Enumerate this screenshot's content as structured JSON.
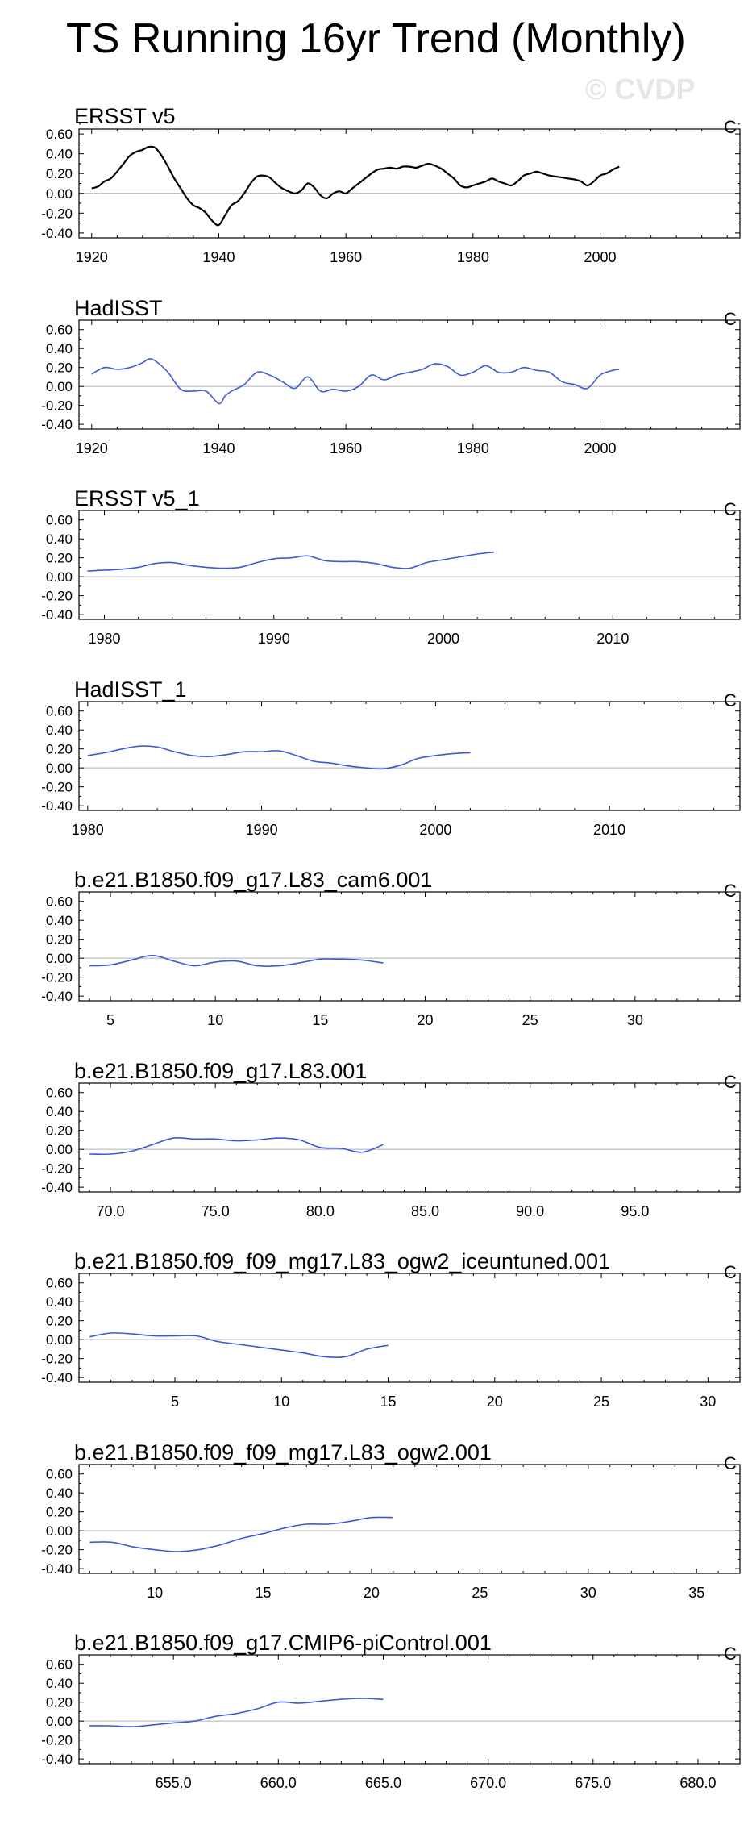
{
  "page_title": "TS Running 16yr Trend (Monthly)",
  "watermark": "© CVDP",
  "chart_data": [
    {
      "type": "line",
      "title": "ERSST v5",
      "units": "C",
      "line_color": "#000000",
      "xlim": [
        1918,
        2022
      ],
      "ylim": [
        -0.45,
        0.65
      ],
      "xticks": [
        1920,
        1940,
        1960,
        1980,
        2000
      ],
      "xtick_labels": [
        "1920",
        "1940",
        "1960",
        "1980",
        "2000"
      ],
      "yticks": [
        -0.4,
        -0.2,
        0.0,
        0.2,
        0.4,
        0.6
      ],
      "ytick_labels": [
        "-0.40",
        "-0.20",
        "0.00",
        "0.20",
        "0.40",
        "0.60"
      ],
      "x": [
        1920,
        1921,
        1922,
        1923,
        1924,
        1925,
        1926,
        1927,
        1928,
        1929,
        1930,
        1931,
        1932,
        1933,
        1934,
        1935,
        1936,
        1937,
        1938,
        1939,
        1940,
        1941,
        1942,
        1943,
        1944,
        1945,
        1946,
        1947,
        1948,
        1949,
        1950,
        1951,
        1952,
        1953,
        1954,
        1955,
        1956,
        1957,
        1958,
        1959,
        1960,
        1961,
        1962,
        1963,
        1964,
        1965,
        1966,
        1967,
        1968,
        1969,
        1970,
        1971,
        1972,
        1973,
        1974,
        1975,
        1976,
        1977,
        1978,
        1979,
        1980,
        1981,
        1982,
        1983,
        1984,
        1985,
        1986,
        1987,
        1988,
        1989,
        1990,
        1991,
        1992,
        1993,
        1994,
        1995,
        1996,
        1997,
        1998,
        1999,
        2000,
        2001,
        2002,
        2003
      ],
      "values": [
        0.05,
        0.07,
        0.12,
        0.15,
        0.22,
        0.3,
        0.38,
        0.42,
        0.44,
        0.47,
        0.46,
        0.38,
        0.27,
        0.15,
        0.05,
        -0.05,
        -0.12,
        -0.15,
        -0.2,
        -0.28,
        -0.32,
        -0.22,
        -0.12,
        -0.08,
        0.0,
        0.1,
        0.17,
        0.18,
        0.16,
        0.1,
        0.05,
        0.02,
        0.0,
        0.03,
        0.1,
        0.06,
        -0.02,
        -0.05,
        0.0,
        0.02,
        0.0,
        0.05,
        0.1,
        0.15,
        0.2,
        0.24,
        0.25,
        0.26,
        0.25,
        0.27,
        0.27,
        0.26,
        0.28,
        0.3,
        0.28,
        0.25,
        0.2,
        0.15,
        0.08,
        0.06,
        0.08,
        0.1,
        0.12,
        0.15,
        0.12,
        0.1,
        0.08,
        0.12,
        0.18,
        0.2,
        0.22,
        0.2,
        0.18,
        0.17,
        0.16,
        0.15,
        0.14,
        0.12,
        0.08,
        0.12,
        0.18,
        0.2,
        0.24,
        0.27
      ]
    },
    {
      "type": "line",
      "title": "HadISST",
      "units": "C",
      "line_color": "#3b5bd6",
      "xlim": [
        1918,
        2022
      ],
      "ylim": [
        -0.45,
        0.7
      ],
      "xticks": [
        1920,
        1940,
        1960,
        1980,
        2000
      ],
      "xtick_labels": [
        "1920",
        "1940",
        "1960",
        "1980",
        "2000"
      ],
      "yticks": [
        -0.4,
        -0.2,
        0.0,
        0.2,
        0.4,
        0.6
      ],
      "ytick_labels": [
        "-0.40",
        "-0.20",
        "0.00",
        "0.20",
        "0.40",
        "0.60"
      ],
      "x": [
        1920,
        1922,
        1924,
        1926,
        1928,
        1929,
        1930,
        1932,
        1934,
        1936,
        1938,
        1940,
        1941,
        1942,
        1944,
        1946,
        1948,
        1950,
        1952,
        1954,
        1956,
        1958,
        1960,
        1962,
        1964,
        1966,
        1968,
        1970,
        1972,
        1974,
        1976,
        1978,
        1980,
        1982,
        1984,
        1986,
        1988,
        1990,
        1992,
        1994,
        1996,
        1998,
        2000,
        2002,
        2003
      ],
      "values": [
        0.13,
        0.2,
        0.18,
        0.2,
        0.25,
        0.29,
        0.27,
        0.15,
        -0.03,
        -0.05,
        -0.05,
        -0.18,
        -0.1,
        -0.05,
        0.02,
        0.15,
        0.12,
        0.05,
        -0.02,
        0.1,
        -0.05,
        -0.03,
        -0.05,
        0.0,
        0.12,
        0.07,
        0.12,
        0.15,
        0.18,
        0.24,
        0.21,
        0.12,
        0.15,
        0.22,
        0.15,
        0.15,
        0.2,
        0.17,
        0.15,
        0.05,
        0.02,
        -0.02,
        0.12,
        0.17,
        0.18
      ]
    },
    {
      "type": "line",
      "title": "ERSST v5_1",
      "units": "C",
      "line_color": "#3b5bd6",
      "xlim": [
        1978.5,
        2017.5
      ],
      "ylim": [
        -0.45,
        0.7
      ],
      "xticks": [
        1980,
        1990,
        2000,
        2010
      ],
      "xtick_labels": [
        "1980",
        "1990",
        "2000",
        "2010"
      ],
      "yticks": [
        -0.4,
        -0.2,
        0.0,
        0.2,
        0.4,
        0.6
      ],
      "ytick_labels": [
        "-0.40",
        "-0.20",
        "0.00",
        "0.20",
        "0.40",
        "0.60"
      ],
      "x": [
        1979,
        1980,
        1981,
        1982,
        1983,
        1984,
        1985,
        1986,
        1987,
        1988,
        1989,
        1990,
        1991,
        1992,
        1993,
        1994,
        1995,
        1996,
        1997,
        1998,
        1999,
        2000,
        2001,
        2002,
        2003
      ],
      "values": [
        0.06,
        0.07,
        0.08,
        0.1,
        0.14,
        0.15,
        0.12,
        0.1,
        0.09,
        0.1,
        0.15,
        0.19,
        0.2,
        0.22,
        0.17,
        0.16,
        0.16,
        0.14,
        0.1,
        0.09,
        0.15,
        0.18,
        0.21,
        0.24,
        0.26
      ]
    },
    {
      "type": "line",
      "title": "HadISST_1",
      "units": "C",
      "line_color": "#3b5bd6",
      "xlim": [
        1979.5,
        2017.5
      ],
      "ylim": [
        -0.45,
        0.7
      ],
      "xticks": [
        1980,
        1990,
        2000,
        2010
      ],
      "xtick_labels": [
        "1980",
        "1990",
        "2000",
        "2010"
      ],
      "yticks": [
        -0.4,
        -0.2,
        0.0,
        0.2,
        0.4,
        0.6
      ],
      "ytick_labels": [
        "-0.40",
        "-0.20",
        "0.00",
        "0.20",
        "0.40",
        "0.60"
      ],
      "x": [
        1980,
        1981,
        1982,
        1983,
        1984,
        1985,
        1986,
        1987,
        1988,
        1989,
        1990,
        1991,
        1992,
        1993,
        1994,
        1995,
        1996,
        1997,
        1998,
        1999,
        2000,
        2001,
        2002
      ],
      "values": [
        0.13,
        0.16,
        0.2,
        0.23,
        0.22,
        0.17,
        0.13,
        0.12,
        0.14,
        0.17,
        0.17,
        0.18,
        0.13,
        0.07,
        0.05,
        0.02,
        0.0,
        -0.01,
        0.03,
        0.1,
        0.13,
        0.15,
        0.16
      ]
    },
    {
      "type": "line",
      "title": "b.e21.B1850.f09_g17.L83_cam6.001",
      "units": "C",
      "line_color": "#3b5bd6",
      "xlim": [
        3.5,
        35
      ],
      "ylim": [
        -0.45,
        0.7
      ],
      "xticks": [
        5,
        10,
        15,
        20,
        25,
        30
      ],
      "xtick_labels": [
        "5",
        "10",
        "15",
        "20",
        "25",
        "30"
      ],
      "yticks": [
        -0.4,
        -0.2,
        0.0,
        0.2,
        0.4,
        0.6
      ],
      "ytick_labels": [
        "-0.40",
        "-0.20",
        "0.00",
        "0.20",
        "0.40",
        "0.60"
      ],
      "x": [
        4,
        5,
        6,
        7,
        8,
        9,
        10,
        11,
        12,
        13,
        14,
        15,
        16,
        17,
        18
      ],
      "values": [
        -0.08,
        -0.07,
        -0.02,
        0.03,
        -0.03,
        -0.08,
        -0.04,
        -0.03,
        -0.08,
        -0.08,
        -0.05,
        -0.01,
        -0.01,
        -0.02,
        -0.05
      ]
    },
    {
      "type": "line",
      "title": "b.e21.B1850.f09_g17.L83.001",
      "units": "C",
      "line_color": "#3b5bd6",
      "xlim": [
        68.5,
        100
      ],
      "ylim": [
        -0.45,
        0.7
      ],
      "xticks": [
        70,
        75,
        80,
        85,
        90,
        95
      ],
      "xtick_labels": [
        "70.0",
        "75.0",
        "80.0",
        "85.0",
        "90.0",
        "95.0"
      ],
      "yticks": [
        -0.4,
        -0.2,
        0.0,
        0.2,
        0.4,
        0.6
      ],
      "ytick_labels": [
        "-0.40",
        "-0.20",
        "0.00",
        "0.20",
        "0.40",
        "0.60"
      ],
      "x": [
        69,
        70,
        71,
        72,
        73,
        74,
        75,
        76,
        77,
        78,
        79,
        80,
        81,
        82,
        83
      ],
      "values": [
        -0.05,
        -0.05,
        -0.02,
        0.05,
        0.12,
        0.11,
        0.11,
        0.09,
        0.1,
        0.12,
        0.1,
        0.02,
        0.01,
        -0.03,
        0.05
      ]
    },
    {
      "type": "line",
      "title": "b.e21.B1850.f09_f09_mg17.L83_ogw2_iceuntuned.001",
      "units": "C",
      "line_color": "#3b5bd6",
      "xlim": [
        0.5,
        31.5
      ],
      "ylim": [
        -0.45,
        0.7
      ],
      "xticks": [
        5,
        10,
        15,
        20,
        25,
        30
      ],
      "xtick_labels": [
        "5",
        "10",
        "15",
        "20",
        "25",
        "30"
      ],
      "yticks": [
        -0.4,
        -0.2,
        0.0,
        0.2,
        0.4,
        0.6
      ],
      "ytick_labels": [
        "-0.40",
        "-0.20",
        "0.00",
        "0.20",
        "0.40",
        "0.60"
      ],
      "x": [
        1,
        2,
        3,
        4,
        5,
        6,
        7,
        8,
        9,
        10,
        11,
        12,
        13,
        14,
        15
      ],
      "values": [
        0.03,
        0.07,
        0.06,
        0.04,
        0.04,
        0.04,
        -0.02,
        -0.05,
        -0.08,
        -0.11,
        -0.14,
        -0.18,
        -0.18,
        -0.1,
        -0.06
      ]
    },
    {
      "type": "line",
      "title": "b.e21.B1850.f09_f09_mg17.L83_ogw2.001",
      "units": "C",
      "line_color": "#3b5bd6",
      "xlim": [
        6.5,
        37
      ],
      "ylim": [
        -0.45,
        0.7
      ],
      "xticks": [
        10,
        15,
        20,
        25,
        30,
        35
      ],
      "xtick_labels": [
        "10",
        "15",
        "20",
        "25",
        "30",
        "35"
      ],
      "yticks": [
        -0.4,
        -0.2,
        0.0,
        0.2,
        0.4,
        0.6
      ],
      "ytick_labels": [
        "-0.40",
        "-0.20",
        "0.00",
        "0.20",
        "0.40",
        "0.60"
      ],
      "x": [
        7,
        8,
        9,
        10,
        11,
        12,
        13,
        14,
        15,
        16,
        17,
        18,
        19,
        20,
        21
      ],
      "values": [
        -0.12,
        -0.12,
        -0.17,
        -0.2,
        -0.22,
        -0.2,
        -0.15,
        -0.08,
        -0.03,
        0.03,
        0.07,
        0.07,
        0.1,
        0.14,
        0.14
      ]
    },
    {
      "type": "line",
      "title": "b.e21.B1850.f09_g17.CMIP6-piControl.001",
      "units": "C",
      "line_color": "#3b5bd6",
      "xlim": [
        650.5,
        682
      ],
      "ylim": [
        -0.45,
        0.7
      ],
      "xticks": [
        655,
        660,
        665,
        670,
        675,
        680
      ],
      "xtick_labels": [
        "655.0",
        "660.0",
        "665.0",
        "670.0",
        "675.0",
        "680.0"
      ],
      "yticks": [
        -0.4,
        -0.2,
        0.0,
        0.2,
        0.4,
        0.6
      ],
      "ytick_labels": [
        "-0.40",
        "-0.20",
        "0.00",
        "0.20",
        "0.40",
        "0.60"
      ],
      "x": [
        651,
        652,
        653,
        654,
        655,
        656,
        657,
        658,
        659,
        660,
        661,
        662,
        663,
        664,
        665
      ],
      "values": [
        -0.05,
        -0.05,
        -0.06,
        -0.04,
        -0.02,
        0.0,
        0.05,
        0.08,
        0.13,
        0.2,
        0.19,
        0.21,
        0.23,
        0.24,
        0.23
      ]
    }
  ]
}
